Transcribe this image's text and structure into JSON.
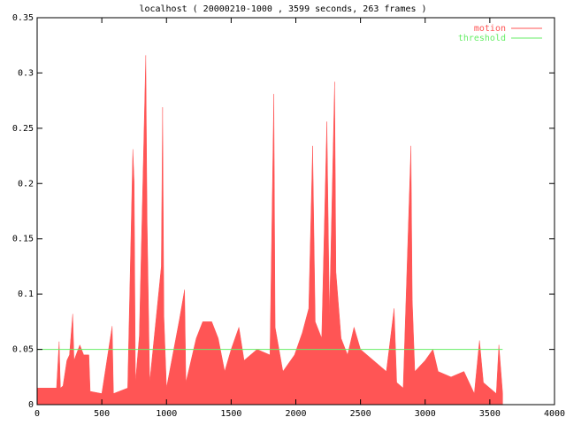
{
  "chart_data": {
    "type": "area",
    "title": "localhost ( 20000210-1000 , 3599 seconds, 263 frames )",
    "series": [
      {
        "name": "motion",
        "color": "#ff5555",
        "x": [
          0,
          150,
          170,
          180,
          200,
          230,
          250,
          275,
          285,
          330,
          360,
          400,
          410,
          500,
          580,
          590,
          700,
          740,
          750,
          760,
          790,
          840,
          850,
          870,
          960,
          970,
          980,
          1000,
          1100,
          1140,
          1150,
          1230,
          1280,
          1350,
          1400,
          1450,
          1500,
          1560,
          1600,
          1700,
          1800,
          1830,
          1840,
          1900,
          1990,
          2050,
          2100,
          2130,
          2150,
          2200,
          2240,
          2260,
          2290,
          2300,
          2310,
          2350,
          2400,
          2450,
          2500,
          2600,
          2700,
          2760,
          2780,
          2830,
          2890,
          2900,
          2920,
          3000,
          3060,
          3100,
          3200,
          3300,
          3380,
          3420,
          3450,
          3550,
          3570,
          3599
        ],
        "values": [
          0.015,
          0.015,
          0.057,
          0.015,
          0.017,
          0.04,
          0.045,
          0.082,
          0.04,
          0.054,
          0.045,
          0.045,
          0.012,
          0.01,
          0.071,
          0.01,
          0.015,
          0.231,
          0.201,
          0.02,
          0.062,
          0.316,
          0.168,
          0.02,
          0.125,
          0.269,
          0.08,
          0.015,
          0.077,
          0.104,
          0.02,
          0.06,
          0.075,
          0.075,
          0.06,
          0.03,
          0.05,
          0.07,
          0.04,
          0.05,
          0.045,
          0.281,
          0.07,
          0.03,
          0.045,
          0.065,
          0.087,
          0.234,
          0.075,
          0.06,
          0.256,
          0.08,
          0.238,
          0.292,
          0.12,
          0.06,
          0.045,
          0.07,
          0.05,
          0.04,
          0.03,
          0.087,
          0.02,
          0.015,
          0.234,
          0.095,
          0.03,
          0.04,
          0.05,
          0.03,
          0.025,
          0.03,
          0.01,
          0.058,
          0.02,
          0.01,
          0.054,
          0.01
        ]
      },
      {
        "name": "threshold",
        "color": "#66ee66",
        "x": [
          0,
          3599
        ],
        "values": [
          0.05,
          0.05
        ]
      }
    ],
    "xlim": [
      0,
      4000
    ],
    "xticks": [
      0,
      500,
      1000,
      1500,
      2000,
      2500,
      3000,
      3500,
      4000
    ],
    "ylim": [
      0,
      0.35
    ],
    "yticks": [
      0,
      0.05,
      0.1,
      0.15,
      0.2,
      0.25,
      0.3,
      0.35
    ],
    "legend": "top-right"
  }
}
